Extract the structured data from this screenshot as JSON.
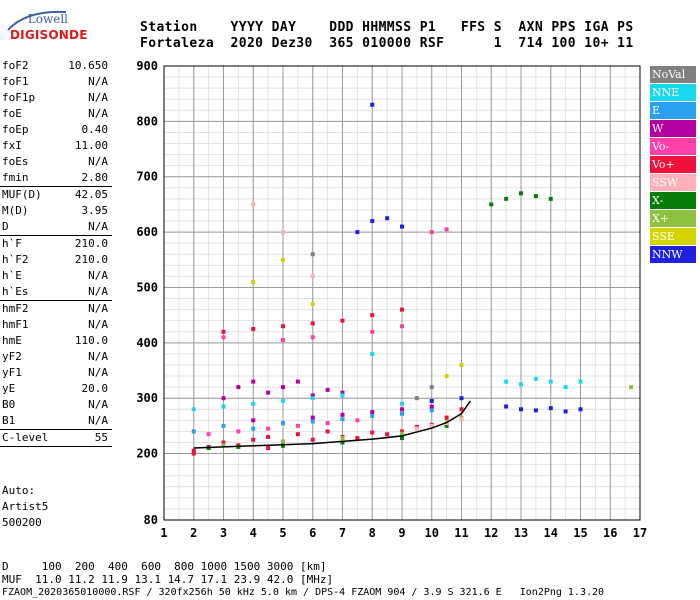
{
  "logo": {
    "line1": "Lowell",
    "line2": "DIGISONDE"
  },
  "header": {
    "columns": "Station    YYYY DAY    DDD HHMMSS P1   FFS S  AXN PPS IGA PS",
    "values": "Fortaleza  2020 Dez30  365 010000 RSF      1  714 100 10+ 11"
  },
  "params": [
    {
      "key": "foF2",
      "value": "10.650"
    },
    {
      "key": "foF1",
      "value": "N/A"
    },
    {
      "key": "foF1p",
      "value": "N/A"
    },
    {
      "key": "foE",
      "value": "N/A"
    },
    {
      "key": "foEp",
      "value": "0.40"
    },
    {
      "key": "fxI",
      "value": "11.00"
    },
    {
      "key": "foEs",
      "value": "N/A"
    },
    {
      "key": "fmin",
      "value": "2.80",
      "sep": true
    },
    {
      "key": "MUF(D)",
      "value": "42.05"
    },
    {
      "key": "M(D)",
      "value": "3.95"
    },
    {
      "key": "D",
      "value": "N/A",
      "sep": true
    },
    {
      "key": "h`F",
      "value": "210.0"
    },
    {
      "key": "h`F2",
      "value": "210.0"
    },
    {
      "key": "h`E",
      "value": "N/A"
    },
    {
      "key": "h`Es",
      "value": "N/A",
      "sep": true
    },
    {
      "key": "hmF2",
      "value": "N/A"
    },
    {
      "key": "hmF1",
      "value": "N/A"
    },
    {
      "key": "hmE",
      "value": "110.0"
    },
    {
      "key": "yF2",
      "value": "N/A"
    },
    {
      "key": "yF1",
      "value": "N/A"
    },
    {
      "key": "yE",
      "value": "20.0"
    },
    {
      "key": "B0",
      "value": "N/A"
    },
    {
      "key": "B1",
      "value": "N/A",
      "sep": true
    },
    {
      "key": "C-level",
      "value": "55",
      "sep": true
    }
  ],
  "auto": {
    "line1": "Auto:",
    "line2": "Artist5",
    "line3": "500200"
  },
  "legend": [
    {
      "label": "NoVal",
      "color": "#808080"
    },
    {
      "label": "NNE",
      "color": "#19d8f0"
    },
    {
      "label": "E",
      "color": "#2aa0f0"
    },
    {
      "label": "W",
      "color": "#b4009e"
    },
    {
      "label": "Vo-",
      "color": "#ff40a8"
    },
    {
      "label": "Vo+",
      "color": "#f0103c"
    },
    {
      "label": "SSW",
      "color": "#ffb0b8"
    },
    {
      "label": "X-",
      "color": "#087c08"
    },
    {
      "label": "X+",
      "color": "#90c040"
    },
    {
      "label": "SSE",
      "color": "#d4d400"
    },
    {
      "label": "NNW",
      "color": "#2020e0"
    }
  ],
  "footer": {
    "line1": "D     100  200  400  600  800 1000 1500 3000 [km]",
    "line2": "MUF  11.0 11.2 11.9 13.1 14.7 17.1 23.9 42.0 [MHz]",
    "line3": "FZAOM_2020365010000.RSF / 320fx256h 50 kHz 5.0 km / DPS-4 FZAOM 904 / 3.9 S 321.6 E   Ion2Png 1.3.20"
  },
  "chart_data": {
    "type": "scatter",
    "title": "",
    "xlabel": "",
    "ylabel": "",
    "xlim": [
      1,
      17
    ],
    "ylim": [
      80,
      900
    ],
    "x_ticks": [
      1,
      2,
      3,
      4,
      5,
      6,
      7,
      8,
      9,
      10,
      11,
      12,
      13,
      14,
      15,
      16,
      17
    ],
    "y_ticks": [
      80,
      200,
      300,
      400,
      500,
      600,
      700,
      800,
      900
    ],
    "grid": true,
    "trace": {
      "name": "h'F trace",
      "x": [
        2.0,
        3.0,
        4.0,
        5.0,
        6.0,
        7.0,
        8.0,
        9.0,
        10.0,
        10.5,
        11.0,
        11.3
      ],
      "y": [
        210,
        212,
        214,
        216,
        218,
        222,
        226,
        232,
        246,
        256,
        272,
        295
      ]
    },
    "series": [
      {
        "name": "Vo+",
        "points": [
          [
            2.0,
            205
          ],
          [
            2.5,
            212
          ],
          [
            3.0,
            220
          ],
          [
            3.5,
            215
          ],
          [
            4.0,
            225
          ],
          [
            4.5,
            230
          ],
          [
            5.0,
            218
          ],
          [
            5.5,
            235
          ],
          [
            6.0,
            225
          ],
          [
            6.5,
            240
          ],
          [
            7.0,
            230
          ],
          [
            7.5,
            228
          ],
          [
            8.0,
            238
          ],
          [
            8.5,
            235
          ],
          [
            9.0,
            240
          ],
          [
            9.5,
            248
          ],
          [
            10.0,
            252
          ],
          [
            10.5,
            265
          ],
          [
            11.0,
            280
          ],
          [
            3.0,
            420
          ],
          [
            4.0,
            425
          ],
          [
            5.0,
            430
          ],
          [
            6.0,
            435
          ],
          [
            7.0,
            440
          ],
          [
            8.0,
            450
          ],
          [
            9.0,
            460
          ],
          [
            2.0,
            200
          ],
          [
            4.5,
            210
          ]
        ]
      },
      {
        "name": "Vo-",
        "points": [
          [
            2.5,
            235
          ],
          [
            3.5,
            240
          ],
          [
            4.5,
            245
          ],
          [
            5.5,
            250
          ],
          [
            6.5,
            255
          ],
          [
            7.5,
            260
          ],
          [
            3.0,
            410
          ],
          [
            5.0,
            405
          ],
          [
            6.0,
            410
          ],
          [
            8.0,
            420
          ],
          [
            9.0,
            430
          ],
          [
            10.0,
            600
          ],
          [
            10.5,
            605
          ]
        ]
      },
      {
        "name": "W",
        "points": [
          [
            3.0,
            300
          ],
          [
            3.5,
            320
          ],
          [
            4.0,
            330
          ],
          [
            4.5,
            310
          ],
          [
            5.0,
            320
          ],
          [
            5.5,
            330
          ],
          [
            6.0,
            305
          ],
          [
            6.5,
            315
          ],
          [
            7.0,
            310
          ],
          [
            4.0,
            260
          ],
          [
            5.0,
            255
          ],
          [
            6.0,
            265
          ],
          [
            7.0,
            270
          ],
          [
            8.0,
            275
          ],
          [
            9.0,
            280
          ],
          [
            10.0,
            285
          ]
        ]
      },
      {
        "name": "NNE",
        "points": [
          [
            2.0,
            280
          ],
          [
            3.0,
            285
          ],
          [
            4.0,
            290
          ],
          [
            5.0,
            295
          ],
          [
            6.0,
            300
          ],
          [
            7.0,
            305
          ],
          [
            8.0,
            380
          ],
          [
            9.0,
            290
          ],
          [
            12.5,
            330
          ],
          [
            13.0,
            325
          ],
          [
            13.5,
            335
          ],
          [
            14.0,
            330
          ],
          [
            14.5,
            320
          ],
          [
            15.0,
            330
          ]
        ]
      },
      {
        "name": "E",
        "points": [
          [
            2.0,
            240
          ],
          [
            3.0,
            250
          ],
          [
            4.0,
            245
          ],
          [
            5.0,
            255
          ],
          [
            6.0,
            258
          ],
          [
            7.0,
            262
          ],
          [
            8.0,
            268
          ],
          [
            9.0,
            272
          ],
          [
            10.0,
            278
          ]
        ]
      },
      {
        "name": "NNW",
        "points": [
          [
            8.0,
            620
          ],
          [
            8.5,
            625
          ],
          [
            9.0,
            610
          ],
          [
            7.5,
            600
          ],
          [
            8.0,
            830
          ],
          [
            12.5,
            285
          ],
          [
            13.0,
            280
          ],
          [
            13.5,
            278
          ],
          [
            14.0,
            282
          ],
          [
            14.5,
            276
          ],
          [
            15.0,
            280
          ],
          [
            10.0,
            295
          ],
          [
            11.0,
            300
          ]
        ]
      },
      {
        "name": "X-",
        "points": [
          [
            12.0,
            650
          ],
          [
            12.5,
            660
          ],
          [
            13.0,
            670
          ],
          [
            13.5,
            665
          ],
          [
            14.0,
            660
          ],
          [
            2.5,
            210
          ],
          [
            3.5,
            212
          ],
          [
            5.0,
            214
          ],
          [
            7.0,
            220
          ],
          [
            9.0,
            228
          ],
          [
            10.5,
            250
          ]
        ]
      },
      {
        "name": "X+",
        "points": [
          [
            3.0,
            215
          ],
          [
            5.0,
            222
          ],
          [
            7.0,
            228
          ],
          [
            9.0,
            236
          ],
          [
            10.5,
            258
          ],
          [
            11.0,
            265
          ],
          [
            16.7,
            320
          ]
        ]
      },
      {
        "name": "SSW",
        "points": [
          [
            9.5,
            245
          ],
          [
            10.0,
            250
          ],
          [
            10.5,
            255
          ],
          [
            11.0,
            262
          ],
          [
            4.0,
            650
          ],
          [
            5.0,
            600
          ],
          [
            6.0,
            520
          ]
        ]
      },
      {
        "name": "SSE",
        "points": [
          [
            11.0,
            360
          ],
          [
            5.0,
            550
          ],
          [
            6.0,
            470
          ],
          [
            4.0,
            510
          ],
          [
            10.5,
            340
          ]
        ]
      },
      {
        "name": "NoVal",
        "points": [
          [
            9.5,
            300
          ],
          [
            10.0,
            320
          ],
          [
            6.0,
            560
          ]
        ]
      }
    ]
  }
}
